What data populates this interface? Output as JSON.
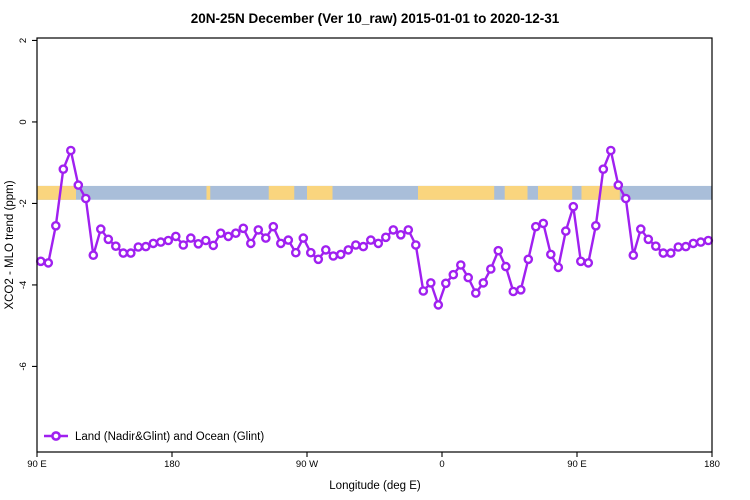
{
  "chart_data": {
    "type": "line",
    "title": "20N-25N December (Ver 10_raw)   2015-01-01 to 2020-12-31",
    "xlabel": "Longitude (deg E)",
    "ylabel": "XCO2 - MLO trend (ppm)",
    "ylim": [
      -8.1,
      2.06
    ],
    "x_axis": {
      "start_lon": "90 E",
      "span_deg": 450,
      "ticks": [
        {
          "pos_deg": 0,
          "label": "90 E"
        },
        {
          "pos_deg": 90,
          "label": "180"
        },
        {
          "pos_deg": 180,
          "label": "90 W"
        },
        {
          "pos_deg": 270,
          "label": "0"
        },
        {
          "pos_deg": 360,
          "label": "90 E"
        },
        {
          "pos_deg": 450,
          "label": "180"
        }
      ]
    },
    "y_axis": {
      "ticks": [
        {
          "value": 2,
          "label": "2"
        },
        {
          "value": 0,
          "label": "0"
        },
        {
          "value": -2,
          "label": "-2"
        },
        {
          "value": -4,
          "label": "-4"
        },
        {
          "value": -6,
          "label": "-6"
        }
      ]
    },
    "legend": {
      "label": "Land (Nadir&Glint) and Ocean (Glint)"
    },
    "colors": {
      "series": "#A020F0",
      "marker_fill": "#FFFFFF",
      "land_band": "#FAD57E",
      "ocean_band": "#A9BED9",
      "frame": "#000000"
    },
    "map_band": {
      "top_value": -1.57,
      "bottom_value": -1.91,
      "land_segments_deg": [
        {
          "from": 0,
          "to": 26
        },
        {
          "from": 113,
          "to": 115.5
        },
        {
          "from": 154.5,
          "to": 171.5
        },
        {
          "from": 180,
          "to": 197
        },
        {
          "from": 254,
          "to": 304.8
        },
        {
          "from": 311.8,
          "to": 327
        },
        {
          "from": 334,
          "to": 356.8
        },
        {
          "from": 363,
          "to": 388.5
        }
      ]
    },
    "series": [
      {
        "name": "Land (Nadir&Glint) and Ocean (Glint)",
        "start_offset_deg": 2.5,
        "step_deg": 5,
        "x_lon_deg": [
          92.5,
          97.5,
          102.5,
          107.5,
          112.5,
          117.5,
          122.5,
          127.5,
          132.5,
          137.5,
          142.5,
          147.5,
          152.5,
          157.5,
          162.5,
          167.5,
          172.5,
          177.5,
          -177.5,
          -172.5,
          -167.5,
          -162.5,
          -157.5,
          -152.5,
          -147.5,
          -142.5,
          -137.5,
          -132.5,
          -127.5,
          -122.5,
          -117.5,
          -112.5,
          -107.5,
          -102.5,
          -97.5,
          -92.5,
          -87.5,
          -82.5,
          -77.5,
          -72.5,
          -67.5,
          -62.5,
          -57.5,
          -52.5,
          -47.5,
          -42.5,
          -37.5,
          -32.5,
          -27.5,
          -22.5,
          -17.5,
          -12.5,
          -7.5,
          -2.5,
          2.5,
          7.5,
          12.5,
          17.5,
          22.5,
          27.5,
          32.5,
          37.5,
          42.5,
          47.5,
          52.5,
          57.5,
          62.5,
          67.5,
          72.5,
          77.5,
          82.5,
          87.5,
          92.5,
          97.5,
          102.5,
          107.5,
          112.5,
          117.5,
          122.5,
          127.5,
          132.5,
          137.5,
          142.5,
          147.5,
          152.5,
          157.5,
          162.5,
          167.5,
          172.5,
          177.5
        ],
        "values": [
          -3.42,
          -3.46,
          -2.55,
          -1.16,
          -0.7,
          -1.55,
          -1.88,
          -3.27,
          -2.63,
          -2.88,
          -3.05,
          -3.22,
          -3.22,
          -3.07,
          -3.06,
          -2.98,
          -2.95,
          -2.91,
          -2.81,
          -3.02,
          -2.85,
          -2.99,
          -2.91,
          -3.03,
          -2.73,
          -2.81,
          -2.73,
          -2.61,
          -2.98,
          -2.65,
          -2.85,
          -2.57,
          -2.98,
          -2.9,
          -3.21,
          -2.85,
          -3.21,
          -3.37,
          -3.14,
          -3.29,
          -3.25,
          -3.14,
          -3.02,
          -3.06,
          -2.9,
          -2.98,
          -2.83,
          -2.65,
          -2.77,
          -2.65,
          -3.02,
          -4.15,
          -3.95,
          -4.49,
          -3.96,
          -3.75,
          -3.51,
          -3.82,
          -4.2,
          -3.95,
          -3.61,
          -3.16,
          -3.55,
          -4.16,
          -4.12,
          -3.37,
          -2.57,
          -2.49,
          -3.25,
          -3.57,
          -2.68,
          -2.08,
          -3.42,
          -3.46,
          -2.55,
          -1.16,
          -0.7,
          -1.55,
          -1.88,
          -3.27,
          -2.63,
          -2.88,
          -3.05,
          -3.22,
          -3.22,
          -3.07,
          -3.06,
          -2.98,
          -2.95,
          -2.91
        ]
      }
    ]
  }
}
